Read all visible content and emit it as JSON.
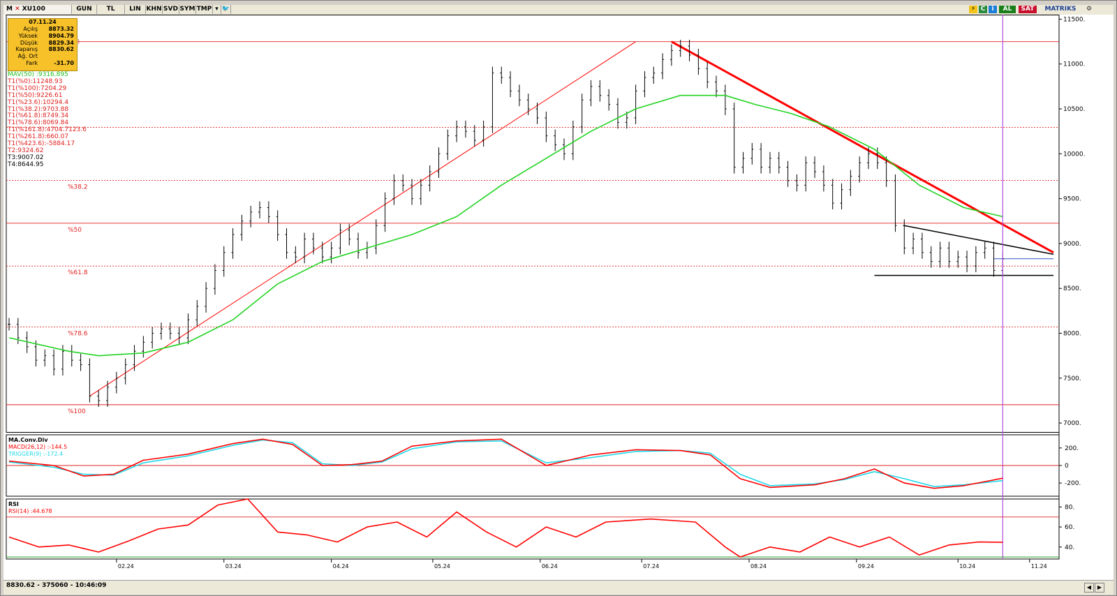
{
  "toolbar": {
    "symbol": "XU100",
    "buttons": [
      "GUN",
      "TL",
      "LIN",
      "KHN",
      "SVD",
      "SYM",
      "TMP"
    ],
    "buy_label": "AL",
    "sell_label": "SAT",
    "brand": "MATRIKS",
    "brand_color": "#1c3f95",
    "buy_color": "#1a7f1a",
    "sell_color": "#c8102e"
  },
  "ohlc_box": {
    "date": "07.11.24",
    "rows": [
      {
        "label": "Açılış",
        "value": "8873.32"
      },
      {
        "label": "Yüksek",
        "value": "8904.79"
      },
      {
        "label": "Düşük",
        "value": "8829.34"
      },
      {
        "label": "Kapanış",
        "value": "8830.62"
      },
      {
        "label": "Ağ. Ort",
        "value": ""
      },
      {
        "label": "Fark",
        "value": "-31.70"
      }
    ]
  },
  "legend": {
    "mav": "MAV(50)      :9316.895",
    "fib": [
      "T1(%0):11248.93",
      "T1(%100):7204.29",
      "T1(%50):9226.61",
      "T1(%23.6):10294.4",
      "T1(%38.2):9703.88",
      "T1(%61.8):8749.34",
      "T1(%78.6):8069.84",
      "T1(%161.8):4704.71",
      "T1(%261.8):660.07",
      "T1(%423.6):-5884.17",
      "T2:9324.62",
      "T3:9007.02",
      "T4:8644.95"
    ],
    "fib_clipped": [
      "23.6",
      ")"
    ]
  },
  "status": {
    "text": "8830.62 - 375060 - 10:46:09"
  },
  "colors": {
    "price": "#000000",
    "mav": "#22d322",
    "fib": "#e02020",
    "trend": "#ff0000",
    "macd": "#ff0000",
    "trigger": "#20d8e8",
    "rsi": "#ff0000",
    "cursor": "#b44ce0"
  },
  "chart_data": [
    {
      "type": "line",
      "panel": "price",
      "y_ticks": [
        "11500.",
        "11000.",
        "10500.",
        "10000.",
        "9500.",
        "9000.",
        "8500.",
        "8000.",
        "7500.",
        "7000."
      ],
      "x_ticks": [
        "02.24",
        "03.24",
        "04.24",
        "05.24",
        "06.24",
        "07.24",
        "08.24",
        "09.24",
        "10.24",
        "11.24"
      ],
      "ylim": [
        6900,
        11550
      ],
      "fib_levels": [
        {
          "label": "",
          "value": 11248.93,
          "style": "solid"
        },
        {
          "label": "",
          "value": 10294.4,
          "style": "dashed"
        },
        {
          "label": "%38.2",
          "value": 9703.88,
          "style": "dashed"
        },
        {
          "label": "%50",
          "value": 9226.61,
          "style": "solid"
        },
        {
          "label": "%61.8",
          "value": 8749.34,
          "style": "dashed"
        },
        {
          "label": "%78.6",
          "value": 8069.84,
          "style": "dashed"
        },
        {
          "label": "%100",
          "value": 7204.29,
          "style": "solid"
        }
      ],
      "price_closes": [
        [
          0,
          8100
        ],
        [
          3,
          7950
        ],
        [
          6,
          7850
        ],
        [
          9,
          7700
        ],
        [
          12,
          7750
        ],
        [
          15,
          7600
        ],
        [
          18,
          7800
        ],
        [
          21,
          7700
        ],
        [
          24,
          7650
        ],
        [
          27,
          7300
        ],
        [
          30,
          7250
        ],
        [
          33,
          7400
        ],
        [
          36,
          7500
        ],
        [
          39,
          7650
        ],
        [
          42,
          7800
        ],
        [
          45,
          7900
        ],
        [
          48,
          8000
        ],
        [
          51,
          8050
        ],
        [
          54,
          8000
        ],
        [
          57,
          7950
        ],
        [
          60,
          8150
        ],
        [
          63,
          8300
        ],
        [
          66,
          8500
        ],
        [
          69,
          8700
        ],
        [
          72,
          8900
        ],
        [
          75,
          9100
        ],
        [
          78,
          9250
        ],
        [
          81,
          9350
        ],
        [
          84,
          9400
        ],
        [
          87,
          9300
        ],
        [
          90,
          9100
        ],
        [
          93,
          8900
        ],
        [
          96,
          8850
        ],
        [
          99,
          9050
        ],
        [
          102,
          8950
        ],
        [
          105,
          8850
        ],
        [
          108,
          8950
        ],
        [
          111,
          9150
        ],
        [
          114,
          9050
        ],
        [
          117,
          8900
        ],
        [
          120,
          8950
        ],
        [
          123,
          9200
        ],
        [
          126,
          9500
        ],
        [
          129,
          9700
        ],
        [
          132,
          9650
        ],
        [
          135,
          9500
        ],
        [
          138,
          9650
        ],
        [
          141,
          9800
        ],
        [
          144,
          10000
        ],
        [
          147,
          10200
        ],
        [
          150,
          10300
        ],
        [
          153,
          10250
        ],
        [
          156,
          10150
        ],
        [
          159,
          10300
        ],
        [
          162,
          10900
        ],
        [
          165,
          10850
        ],
        [
          168,
          10700
        ],
        [
          171,
          10600
        ],
        [
          174,
          10500
        ],
        [
          177,
          10400
        ],
        [
          180,
          10200
        ],
        [
          183,
          10100
        ],
        [
          186,
          10000
        ],
        [
          189,
          10300
        ],
        [
          192,
          10600
        ],
        [
          195,
          10750
        ],
        [
          198,
          10650
        ],
        [
          201,
          10550
        ],
        [
          204,
          10350
        ],
        [
          207,
          10400
        ],
        [
          210,
          10700
        ],
        [
          213,
          10850
        ],
        [
          216,
          10900
        ],
        [
          219,
          11050
        ],
        [
          222,
          11150
        ],
        [
          225,
          11200
        ],
        [
          228,
          11100
        ],
        [
          231,
          10950
        ],
        [
          234,
          10800
        ],
        [
          237,
          10700
        ],
        [
          240,
          10500
        ],
        [
          243,
          9850
        ],
        [
          246,
          9950
        ],
        [
          249,
          10050
        ],
        [
          252,
          9850
        ],
        [
          255,
          9950
        ],
        [
          258,
          9850
        ],
        [
          261,
          9700
        ],
        [
          264,
          9650
        ],
        [
          267,
          9900
        ],
        [
          270,
          9800
        ],
        [
          273,
          9650
        ],
        [
          276,
          9450
        ],
        [
          279,
          9600
        ],
        [
          282,
          9750
        ],
        [
          285,
          9900
        ],
        [
          288,
          10000
        ],
        [
          291,
          9900
        ],
        [
          294,
          9700
        ],
        [
          297,
          9200
        ],
        [
          300,
          8950
        ],
        [
          303,
          9050
        ],
        [
          306,
          8900
        ],
        [
          309,
          8800
        ],
        [
          312,
          8950
        ],
        [
          315,
          8800
        ],
        [
          318,
          8850
        ],
        [
          321,
          8750
        ],
        [
          324,
          8900
        ],
        [
          327,
          8950
        ],
        [
          330,
          8700
        ],
        [
          333,
          8830
        ]
      ],
      "mav50": [
        [
          0,
          7950
        ],
        [
          20,
          7800
        ],
        [
          30,
          7750
        ],
        [
          45,
          7780
        ],
        [
          60,
          7900
        ],
        [
          75,
          8150
        ],
        [
          90,
          8550
        ],
        [
          105,
          8800
        ],
        [
          120,
          8950
        ],
        [
          135,
          9100
        ],
        [
          150,
          9300
        ],
        [
          165,
          9650
        ],
        [
          180,
          9950
        ],
        [
          195,
          10250
        ],
        [
          210,
          10500
        ],
        [
          225,
          10650
        ],
        [
          240,
          10650
        ],
        [
          250,
          10550
        ],
        [
          262,
          10450
        ],
        [
          275,
          10300
        ],
        [
          290,
          10050
        ],
        [
          305,
          9650
        ],
        [
          320,
          9400
        ],
        [
          333,
          9300
        ]
      ],
      "trendlines": [
        {
          "from": [
            27,
            7300
          ],
          "to": [
            210,
            11248.93
          ],
          "color": "#ff0000",
          "width": 1
        },
        {
          "from": [
            222,
            11248.93
          ],
          "to": [
            350,
            8900
          ],
          "color": "#ff0000",
          "width": 3
        },
        {
          "from": [
            300,
            9200
          ],
          "to": [
            350,
            8880
          ],
          "color": "#000000",
          "width": 1.5
        },
        {
          "from": [
            290,
            8644.95
          ],
          "to": [
            350,
            8644.95
          ],
          "color": "#000000",
          "width": 1.5
        },
        {
          "from": [
            330,
            8830
          ],
          "to": [
            350,
            8830
          ],
          "color": "#3050c8",
          "width": 1
        }
      ],
      "cursor_index": 333
    },
    {
      "type": "line",
      "panel": "macd",
      "title": "MA.Conv.Div",
      "series_labels": [
        "MACD(26,12)  :-144.5",
        "TRIGGER(9)   :-172.4"
      ],
      "y_ticks": [
        "200.",
        "0",
        "-200."
      ],
      "ylim": [
        -350,
        350
      ],
      "macd": [
        [
          0,
          50
        ],
        [
          15,
          0
        ],
        [
          25,
          -120
        ],
        [
          35,
          -100
        ],
        [
          45,
          60
        ],
        [
          60,
          130
        ],
        [
          75,
          250
        ],
        [
          85,
          300
        ],
        [
          95,
          240
        ],
        [
          105,
          0
        ],
        [
          115,
          10
        ],
        [
          125,
          50
        ],
        [
          135,
          220
        ],
        [
          150,
          280
        ],
        [
          165,
          300
        ],
        [
          180,
          0
        ],
        [
          195,
          120
        ],
        [
          210,
          180
        ],
        [
          225,
          170
        ],
        [
          235,
          120
        ],
        [
          245,
          -150
        ],
        [
          255,
          -250
        ],
        [
          270,
          -220
        ],
        [
          280,
          -150
        ],
        [
          290,
          -40
        ],
        [
          300,
          -200
        ],
        [
          310,
          -260
        ],
        [
          320,
          -230
        ],
        [
          333,
          -144.5
        ]
      ],
      "trigger": [
        [
          0,
          40
        ],
        [
          15,
          -20
        ],
        [
          25,
          -100
        ],
        [
          35,
          -110
        ],
        [
          45,
          30
        ],
        [
          60,
          110
        ],
        [
          75,
          230
        ],
        [
          85,
          290
        ],
        [
          95,
          260
        ],
        [
          105,
          20
        ],
        [
          115,
          0
        ],
        [
          125,
          40
        ],
        [
          135,
          190
        ],
        [
          150,
          270
        ],
        [
          165,
          280
        ],
        [
          180,
          30
        ],
        [
          195,
          90
        ],
        [
          210,
          160
        ],
        [
          225,
          170
        ],
        [
          235,
          140
        ],
        [
          245,
          -100
        ],
        [
          255,
          -230
        ],
        [
          270,
          -210
        ],
        [
          280,
          -160
        ],
        [
          290,
          -70
        ],
        [
          300,
          -150
        ],
        [
          310,
          -240
        ],
        [
          320,
          -220
        ],
        [
          333,
          -172.4
        ]
      ]
    },
    {
      "type": "line",
      "panel": "rsi",
      "title": "RSI",
      "series_labels": [
        "RSI(14)      :44.678"
      ],
      "y_ticks": [
        "80.",
        "60.",
        "40."
      ],
      "ylim": [
        28,
        88
      ],
      "guides": [
        70,
        30
      ],
      "rsi": [
        [
          0,
          50
        ],
        [
          10,
          40
        ],
        [
          20,
          42
        ],
        [
          30,
          35
        ],
        [
          40,
          46
        ],
        [
          50,
          58
        ],
        [
          60,
          62
        ],
        [
          70,
          82
        ],
        [
          80,
          88
        ],
        [
          90,
          55
        ],
        [
          100,
          52
        ],
        [
          110,
          45
        ],
        [
          120,
          60
        ],
        [
          130,
          65
        ],
        [
          140,
          50
        ],
        [
          150,
          75
        ],
        [
          160,
          55
        ],
        [
          170,
          40
        ],
        [
          180,
          60
        ],
        [
          190,
          50
        ],
        [
          200,
          65
        ],
        [
          215,
          68
        ],
        [
          230,
          65
        ],
        [
          240,
          40
        ],
        [
          245,
          30
        ],
        [
          255,
          40
        ],
        [
          265,
          35
        ],
        [
          275,
          50
        ],
        [
          285,
          40
        ],
        [
          295,
          50
        ],
        [
          305,
          32
        ],
        [
          315,
          42
        ],
        [
          325,
          45
        ],
        [
          333,
          44.678
        ]
      ]
    }
  ]
}
